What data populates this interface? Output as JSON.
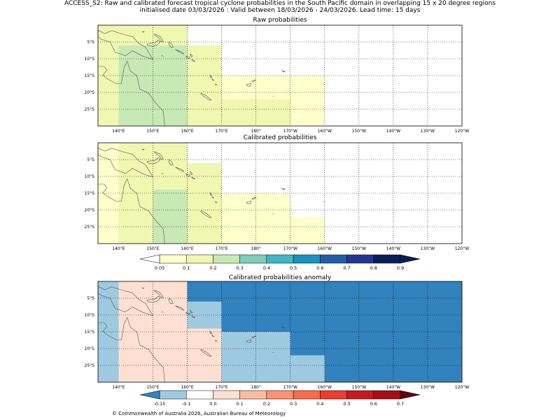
{
  "header": {
    "line1": "ACCESS_S2: Raw and calibrated forecast tropical cyclone probabilities in the South Pacific domain in overlapping 15 x 20 degree regions",
    "line2": "initialised date 03/03/2026 :  Valid between 18/03/2026 - 24/03/2026. Lead time: 15 days"
  },
  "footer": "© Commonwealth of Australia 2026, Australian Bureau of Meteorology",
  "chart_data": {
    "type": "heatmap",
    "lon_ticks": [
      "140°E",
      "150°E",
      "160°E",
      "170°E",
      "180°",
      "170°W",
      "160°W",
      "150°W",
      "140°W",
      "130°W",
      "120°W"
    ],
    "lat_ticks": [
      "5°S",
      "10°S",
      "15°S",
      "20°S",
      "25°S"
    ],
    "lon_range": [
      134,
      240
    ],
    "lat_range": [
      0,
      -30
    ],
    "panels": [
      {
        "title": "Raw probabilities",
        "scale": "prob",
        "cells": [
          {
            "lon": [
              134,
              140
            ],
            "lat": [
              0,
              -30
            ],
            "value": 0.15
          },
          {
            "lon": [
              140,
              160
            ],
            "lat": [
              0,
              -6
            ],
            "value": 0.15
          },
          {
            "lon": [
              140,
              160
            ],
            "lat": [
              -6,
              -30
            ],
            "value": 0.25
          },
          {
            "lon": [
              160,
              170
            ],
            "lat": [
              -6,
              -30
            ],
            "value": 0.15
          },
          {
            "lon": [
              170,
              200
            ],
            "lat": [
              -15,
              -30
            ],
            "value": 0.07
          },
          {
            "lon": [
              170,
              190
            ],
            "lat": [
              -22,
              -30
            ],
            "value": 0.15
          }
        ]
      },
      {
        "title": "Calibrated probabilities",
        "scale": "prob",
        "cells": [
          {
            "lon": [
              134,
              140
            ],
            "lat": [
              0,
              -30
            ],
            "value": 0.07
          },
          {
            "lon": [
              140,
              160
            ],
            "lat": [
              0,
              -30
            ],
            "value": 0.15
          },
          {
            "lon": [
              160,
              170
            ],
            "lat": [
              -6,
              -30
            ],
            "value": 0.15
          },
          {
            "lon": [
              170,
              190
            ],
            "lat": [
              -15,
              -30
            ],
            "value": 0.07
          },
          {
            "lon": [
              190,
              200
            ],
            "lat": [
              -22,
              -30
            ],
            "value": 0.07
          },
          {
            "lon": [
              150,
              160
            ],
            "lat": [
              -14,
              -30
            ],
            "value": 0.25
          }
        ]
      },
      {
        "title": "Calibrated probabilities anomaly",
        "scale": "anom",
        "background": -0.2,
        "cells": [
          {
            "lon": [
              134,
              140
            ],
            "lat": [
              0,
              -30
            ],
            "value": -0.12
          },
          {
            "lon": [
              140,
              160
            ],
            "lat": [
              0,
              -30
            ],
            "value": 0.0
          },
          {
            "lon": [
              160,
              170
            ],
            "lat": [
              -6,
              -14
            ],
            "value": -0.12
          },
          {
            "lon": [
              160,
              170
            ],
            "lat": [
              -14,
              -30
            ],
            "value": 0.0
          },
          {
            "lon": [
              170,
              190
            ],
            "lat": [
              -15,
              -30
            ],
            "value": -0.12
          },
          {
            "lon": [
              190,
              200
            ],
            "lat": [
              -22,
              -30
            ],
            "value": -0.12
          },
          {
            "lon": [
              150,
              160
            ],
            "lat": [
              -14,
              -30
            ],
            "value": 0.02
          }
        ]
      }
    ],
    "prob_colorbar": {
      "ticks": [
        "0.05",
        "0.1",
        "0.2",
        "0.3",
        "0.4",
        "0.5",
        "0.6",
        "0.7",
        "0.8",
        "0.9"
      ],
      "colors": [
        "#ffffcc",
        "#f0f7b0",
        "#c7e9b4",
        "#7fcdbb",
        "#41b6c4",
        "#1d91c0",
        "#225ea8",
        "#253494",
        "#081d58"
      ],
      "under": "#ffffff",
      "over": "#081d58"
    },
    "anom_colorbar": {
      "ticks": [
        "-0.15",
        "-0.1",
        "0.0",
        "0.1",
        "0.2",
        "0.3",
        "0.4",
        "0.5",
        "0.6",
        "0.7"
      ],
      "colors": [
        "#9ecae1",
        "#ffffff",
        "#fee0d2",
        "#fcbba1",
        "#fc9272",
        "#fb6a4a",
        "#ef3b2c",
        "#cb181d",
        "#a50f15"
      ],
      "under": "#3182bd",
      "over": "#67000d"
    }
  }
}
